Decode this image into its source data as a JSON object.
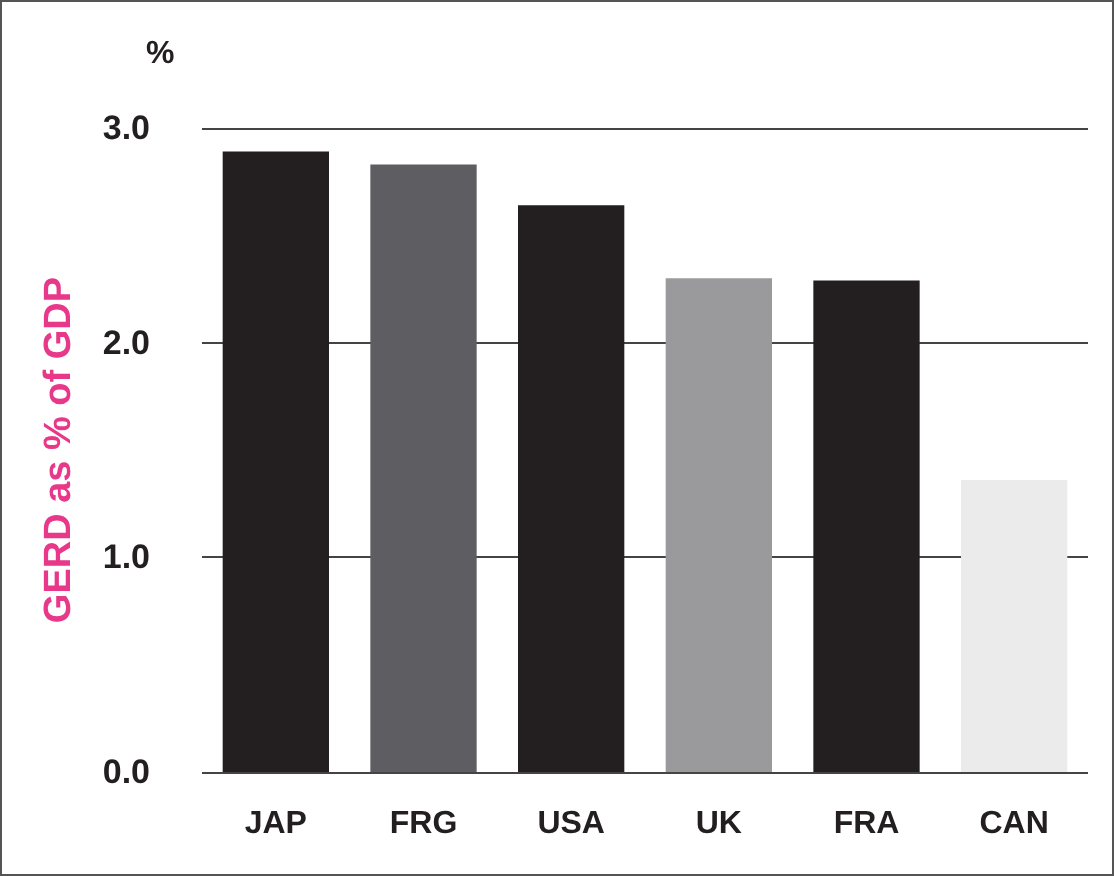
{
  "chart_data": {
    "type": "bar",
    "ylabel": "GERD as % of GDP",
    "annotations": [
      "%"
    ],
    "categories": [
      "JAP",
      "FRG",
      "USA",
      "UK",
      "FRA",
      "CAN"
    ],
    "values": [
      2.89,
      2.83,
      2.64,
      2.3,
      2.29,
      1.36
    ],
    "colors": [
      "#231f20",
      "#5e5e62",
      "#231f20",
      "#9a9a9c",
      "#231f20",
      "#ebebeb"
    ],
    "ylim": [
      0,
      3
    ],
    "yticks": [
      {
        "value": 0,
        "label": "0.0"
      },
      {
        "value": 1,
        "label": "1.0"
      },
      {
        "value": 2,
        "label": "2.0"
      },
      {
        "value": 3,
        "label": "3.0"
      }
    ],
    "grid": "y"
  }
}
